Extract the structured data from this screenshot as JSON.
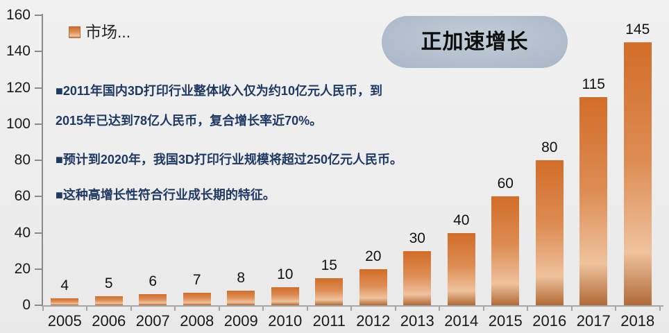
{
  "colors": {
    "accent_orange": "#d26d28",
    "navy_text": "#1f3864",
    "callout_bg": "#b4c0ce",
    "background": "#efefef",
    "axis_gray": "#8a8a8a"
  },
  "legend": {
    "label": "市场..."
  },
  "callout": {
    "label": "正加速增长"
  },
  "annotations": {
    "lines": [
      "■2011年国内3D打印行业整体收入仅为约10亿元人民币，到",
      "2015年已达到78亿人民币，复合增长率近70%。",
      "■预计到2020年，我国3D打印行业规模将超过250亿元人民币。",
      "■这种高增长性符合行业成长期的特征。"
    ]
  },
  "chart_data": {
    "type": "bar",
    "title": "",
    "series_name": "市场...",
    "categories": [
      "2005",
      "2006",
      "2007",
      "2008",
      "2009",
      "2010",
      "2011",
      "2012",
      "2013",
      "2014",
      "2015",
      "2016",
      "2017",
      "2018"
    ],
    "values": [
      4,
      5,
      6,
      7,
      8,
      10,
      15,
      20,
      30,
      40,
      60,
      80,
      115,
      145
    ],
    "xlabel": "",
    "ylabel": "",
    "ylim": [
      0,
      160
    ],
    "ytick_step": 20,
    "grid": false,
    "data_labels": true,
    "legend_position": "top-left",
    "bar_color": "#d26d28",
    "annotation": "正加速增长"
  }
}
